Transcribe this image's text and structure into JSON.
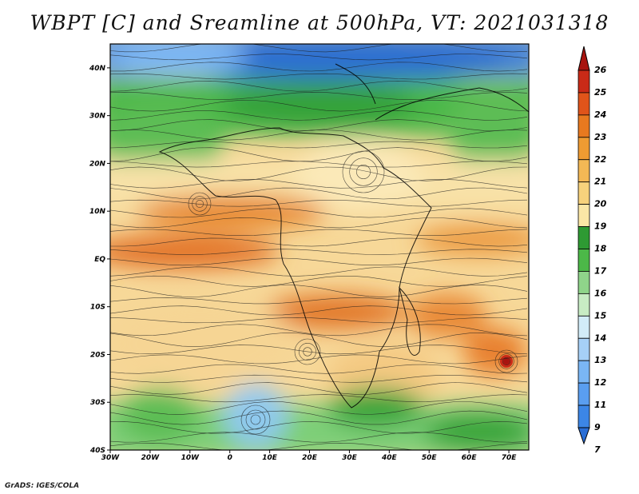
{
  "title": "WBPT [C] and Sreamline at 500hPa, VT: 2021031318",
  "credit": "GrADS: IGES/COLA",
  "map": {
    "lat_labels": [
      "40N",
      "30N",
      "20N",
      "10N",
      "EQ",
      "10S",
      "20S",
      "30S",
      "40S"
    ],
    "lat_values": [
      40,
      30,
      20,
      10,
      0,
      -10,
      -20,
      -30,
      -40
    ],
    "lon_labels": [
      "30W",
      "20W",
      "10W",
      "0",
      "10E",
      "20E",
      "30E",
      "40E",
      "50E",
      "60E",
      "70E"
    ],
    "lon_values": [
      -30,
      -20,
      -10,
      0,
      10,
      20,
      30,
      40,
      50,
      60,
      70
    ],
    "lon_range": [
      -30,
      75
    ],
    "lat_range": [
      -40,
      45
    ]
  },
  "colorbar": {
    "labels": [
      "7",
      "9",
      "11",
      "12",
      "13",
      "14",
      "15",
      "16",
      "17",
      "18",
      "19",
      "20",
      "21",
      "22",
      "23",
      "24",
      "25",
      "26"
    ],
    "colors": [
      "#2a6ed6",
      "#3c86e6",
      "#5a9ef0",
      "#7ab6f5",
      "#a6d0f7",
      "#d2ecf8",
      "#c8ecc4",
      "#8fd48a",
      "#4cb848",
      "#2e9a33",
      "#fbe7a6",
      "#f7d27c",
      "#f3b855",
      "#ef9b32",
      "#e8791f",
      "#e0541a",
      "#c92a17",
      "#a8140f"
    ]
  }
}
